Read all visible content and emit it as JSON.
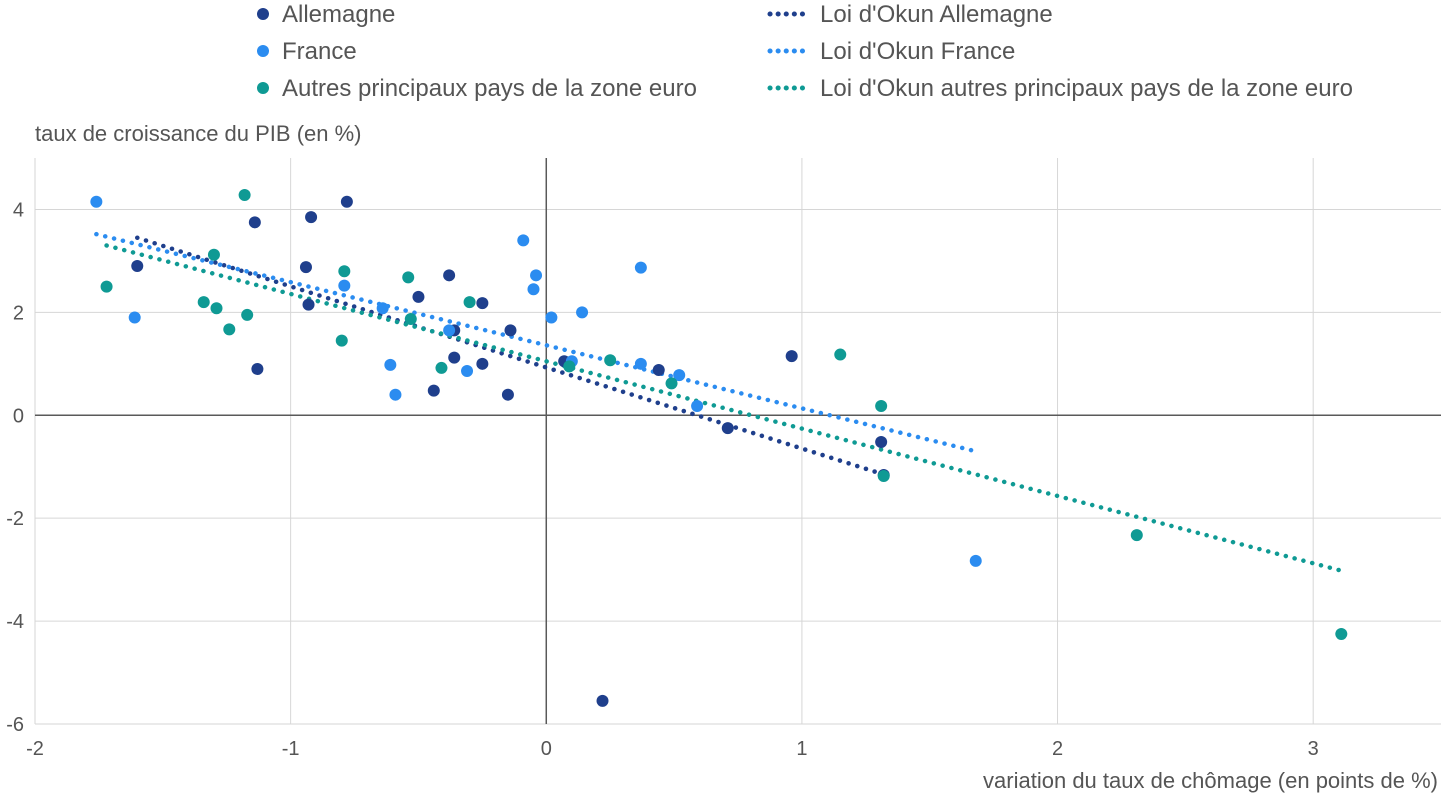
{
  "chart_data": {
    "type": "scatter",
    "xlabel": "variation du taux de chômage (en points de %)",
    "ylabel": "taux de croissance du PIB (en %)",
    "xlim": [
      -2,
      3.5
    ],
    "ylim": [
      -6,
      5
    ],
    "x_ticks": [
      -2,
      -1,
      0,
      1,
      2,
      3
    ],
    "y_ticks": [
      -6,
      -4,
      -2,
      0,
      2,
      4
    ],
    "x_tick_labels": [
      "-2",
      "-1",
      "0",
      "1",
      "2",
      "3"
    ],
    "y_tick_labels": [
      "-6",
      "-4",
      "-2",
      "0",
      "2",
      "4"
    ],
    "grid": true,
    "legend_position": "top",
    "series": [
      {
        "name": "Allemagne",
        "color": "#1f3f8c",
        "points": [
          [
            -1.6,
            2.9
          ],
          [
            -1.14,
            3.75
          ],
          [
            -1.13,
            0.9
          ],
          [
            -0.92,
            3.85
          ],
          [
            -0.78,
            4.15
          ],
          [
            -0.94,
            2.88
          ],
          [
            -0.93,
            2.15
          ],
          [
            -0.5,
            2.3
          ],
          [
            -0.38,
            2.72
          ],
          [
            -0.36,
            1.65
          ],
          [
            -0.36,
            1.12
          ],
          [
            -0.44,
            0.48
          ],
          [
            -0.25,
            2.18
          ],
          [
            -0.25,
            1.0
          ],
          [
            -0.14,
            1.65
          ],
          [
            -0.15,
            0.4
          ],
          [
            0.07,
            1.05
          ],
          [
            0.44,
            0.88
          ],
          [
            0.71,
            -0.25
          ],
          [
            0.96,
            1.15
          ],
          [
            1.31,
            -0.52
          ],
          [
            1.32,
            -1.16
          ],
          [
            0.22,
            -5.55
          ]
        ]
      },
      {
        "name": "France",
        "color": "#2b8cf0",
        "points": [
          [
            -1.76,
            4.15
          ],
          [
            -1.61,
            1.9
          ],
          [
            -0.79,
            2.52
          ],
          [
            -0.64,
            2.08
          ],
          [
            -0.61,
            0.98
          ],
          [
            -0.59,
            0.4
          ],
          [
            -0.38,
            1.65
          ],
          [
            -0.31,
            0.86
          ],
          [
            -0.09,
            3.4
          ],
          [
            -0.05,
            2.45
          ],
          [
            -0.04,
            2.72
          ],
          [
            0.02,
            1.9
          ],
          [
            0.1,
            1.05
          ],
          [
            0.14,
            2.0
          ],
          [
            0.37,
            2.87
          ],
          [
            0.37,
            1.0
          ],
          [
            0.52,
            0.78
          ],
          [
            0.59,
            0.18
          ],
          [
            1.68,
            -2.83
          ]
        ]
      },
      {
        "name": "Autres principaux pays de la zone euro",
        "color": "#0f9a94",
        "points": [
          [
            -1.72,
            2.5
          ],
          [
            -1.34,
            2.2
          ],
          [
            -1.3,
            3.12
          ],
          [
            -1.29,
            2.08
          ],
          [
            -1.24,
            1.67
          ],
          [
            -1.18,
            4.28
          ],
          [
            -1.17,
            1.95
          ],
          [
            -0.79,
            2.8
          ],
          [
            -0.8,
            1.45
          ],
          [
            -0.54,
            2.68
          ],
          [
            -0.53,
            1.87
          ],
          [
            -0.41,
            0.92
          ],
          [
            -0.3,
            2.2
          ],
          [
            0.09,
            0.95
          ],
          [
            0.25,
            1.07
          ],
          [
            0.49,
            0.62
          ],
          [
            1.15,
            1.18
          ],
          [
            1.31,
            0.18
          ],
          [
            1.32,
            -1.18
          ],
          [
            2.31,
            -2.33
          ],
          [
            3.11,
            -4.25
          ]
        ]
      }
    ],
    "trend_lines": [
      {
        "name": "Loi d'Okun Allemagne",
        "color": "#1f3f8c",
        "x": [
          -1.6,
          1.32
        ],
        "y": [
          3.45,
          -1.15
        ]
      },
      {
        "name": "Loi d'Okun France",
        "color": "#2b8cf0",
        "x": [
          -1.76,
          1.68
        ],
        "y": [
          3.52,
          -0.7
        ]
      },
      {
        "name": "Loi d'Okun autres principaux pays de la zone euro",
        "color": "#0f9a94",
        "x": [
          -1.72,
          3.11
        ],
        "y": [
          3.3,
          -3.02
        ]
      }
    ]
  }
}
